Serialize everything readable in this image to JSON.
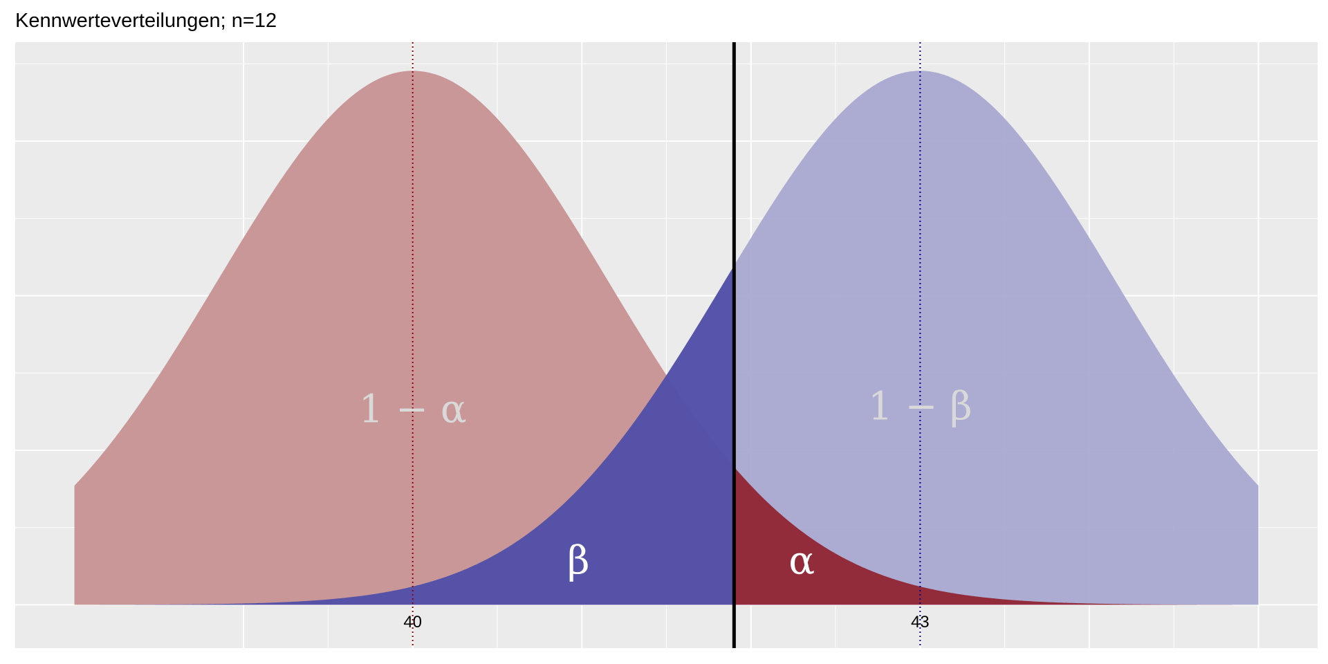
{
  "title": "Kennwerteverteilungen; n=12",
  "chart_data": {
    "type": "area",
    "title": "Kennwerteverteilungen; n=12",
    "xlabel": "",
    "ylabel": "",
    "xlim": [
      37.65,
      45.35
    ],
    "ylim": [
      -0.028,
      0.364
    ],
    "x_ticks": [
      40,
      43
    ],
    "x_tick_labels": [
      "40",
      "43"
    ],
    "grid": true,
    "distributions": [
      {
        "mean": 40,
        "sd": 1.1547,
        "range": [
          38,
          45
        ],
        "color_light": "#c99797",
        "color_dark": "#922c3a"
      },
      {
        "mean": 43,
        "sd": 1.1547,
        "range": [
          38,
          45
        ],
        "color_light": "#a9a9d2",
        "color_dark": "#5150a8"
      }
    ],
    "critical_value": 41.9,
    "mean_lines": [
      {
        "x": 40,
        "color": "#8b0000",
        "style": "dotted"
      },
      {
        "x": 43,
        "color": "#00008b",
        "style": "dotted"
      }
    ],
    "annotations": [
      {
        "text": "1 − α",
        "x": 40,
        "y": 0.118,
        "color": "#d9d9d9"
      },
      {
        "text": "1 − β",
        "x": 43,
        "y": 0.12,
        "color": "#d9d9d9"
      },
      {
        "text": "β",
        "x": 40.98,
        "y": 0.02,
        "color": "#ffffff"
      },
      {
        "text": "α",
        "x": 42.3,
        "y": 0.02,
        "color": "#ffffff"
      }
    ]
  }
}
